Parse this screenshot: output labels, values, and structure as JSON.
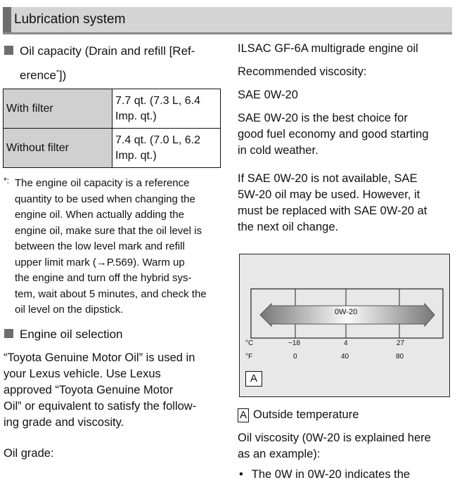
{
  "header": {
    "title": "Lubrication system"
  },
  "left": {
    "section1": {
      "title_lines": [
        "Oil capacity (Drain and refill [Ref-",
        "erence"
      ],
      "title_end": "])",
      "asterisk": "*"
    },
    "table": [
      {
        "label": "With filter",
        "value_lines": [
          "7.7 qt. (7.3 L, 6.4",
          "Imp. qt.)"
        ]
      },
      {
        "label": "Without filter",
        "value_lines": [
          "7.4 qt. (7.0 L, 6.2",
          "Imp. qt.)"
        ]
      }
    ],
    "footnote": {
      "mark": "*:",
      "lines": [
        "The engine oil capacity is a reference",
        "quantity to be used when changing the",
        "engine oil. When actually adding the",
        "engine oil, make sure that the oil level is",
        "between the low level mark and refill",
        "upper limit mark (→P.569). Warm up",
        "the engine and turn off the hybrid sys-",
        "tem, wait about 5 minutes, and check the",
        "oil level on the dipstick."
      ]
    },
    "section2": {
      "title": "Engine oil selection"
    },
    "para": [
      "“Toyota Genuine Motor Oil” is used in",
      "your Lexus vehicle. Use Lexus",
      "approved “Toyota Genuine Motor",
      "Oil” or equivalent to satisfy the follow-",
      "ing grade and viscosity."
    ],
    "oil_grade": "Oil grade:"
  },
  "right": {
    "p1": "ILSAC GF-6A multigrade engine oil",
    "p2": "Recommended viscosity:",
    "p3": "SAE 0W-20",
    "p4": [
      "SAE 0W-20 is the best choice for",
      "good fuel economy and good starting",
      "in cold weather."
    ],
    "p5": [
      "If SAE 0W-20 is not available, SAE",
      "5W-20 oil may be used. However, it",
      "must be replaced with SAE 0W-20 at",
      "the next oil change."
    ],
    "figure": {
      "arrow_label": "0W-20",
      "c_unit": "°C",
      "f_unit": "°F",
      "c_ticks": [
        "−18",
        "4",
        "27"
      ],
      "f_ticks": [
        "0",
        "40",
        "80"
      ],
      "marker": "A"
    },
    "legend": {
      "marker": "A",
      "text": "Outside temperature"
    },
    "p6": [
      "Oil viscosity (0W-20 is explained here",
      "as an example):"
    ],
    "bullet": "•",
    "p7": "The 0W in 0W-20 indicates the"
  }
}
